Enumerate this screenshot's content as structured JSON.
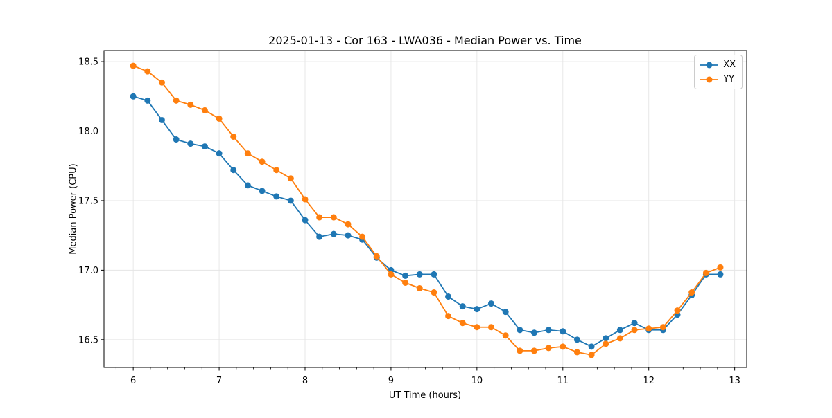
{
  "chart_data": {
    "type": "line",
    "title": "2025-01-13 - Cor 163 - LWA036 - Median Power vs. Time",
    "xlabel": "UT Time (hours)",
    "ylabel": "Median Power (CPU)",
    "x": [
      6.0,
      6.1667,
      6.3333,
      6.5,
      6.6667,
      6.8333,
      7.0,
      7.1667,
      7.3333,
      7.5,
      7.6667,
      7.8333,
      8.0,
      8.1667,
      8.3333,
      8.5,
      8.6667,
      8.8333,
      9.0,
      9.1667,
      9.3333,
      9.5,
      9.6667,
      9.8333,
      10.0,
      10.1667,
      10.3333,
      10.5,
      10.6667,
      10.8333,
      11.0,
      11.1667,
      11.3333,
      11.5,
      11.6667,
      11.8333,
      12.0,
      12.1667,
      12.3333,
      12.5,
      12.6667,
      12.8333
    ],
    "series": [
      {
        "name": "XX",
        "color": "#1f77b4",
        "values": [
          18.25,
          18.22,
          18.08,
          17.94,
          17.91,
          17.89,
          17.84,
          17.72,
          17.61,
          17.57,
          17.53,
          17.5,
          17.36,
          17.24,
          17.26,
          17.25,
          17.22,
          17.09,
          17.0,
          16.96,
          16.97,
          16.97,
          16.81,
          16.74,
          16.72,
          16.76,
          16.7,
          16.57,
          16.55,
          16.57,
          16.56,
          16.5,
          16.45,
          16.51,
          16.57,
          16.62,
          16.57,
          16.57,
          16.68,
          16.82,
          16.97,
          16.97
        ]
      },
      {
        "name": "YY",
        "color": "#ff7f0e",
        "values": [
          18.47,
          18.43,
          18.35,
          18.22,
          18.19,
          18.15,
          18.09,
          17.96,
          17.84,
          17.78,
          17.72,
          17.66,
          17.51,
          17.38,
          17.38,
          17.33,
          17.24,
          17.1,
          16.97,
          16.91,
          16.87,
          16.84,
          16.67,
          16.62,
          16.59,
          16.59,
          16.53,
          16.42,
          16.42,
          16.44,
          16.45,
          16.41,
          16.39,
          16.47,
          16.51,
          16.57,
          16.58,
          16.59,
          16.71,
          16.84,
          16.98,
          17.02
        ]
      }
    ],
    "xlim": [
      5.66,
      13.14
    ],
    "ylim": [
      16.3,
      18.58
    ],
    "xticks": [
      6,
      7,
      8,
      9,
      10,
      11,
      12,
      13
    ],
    "yticks": [
      16.5,
      17.0,
      17.5,
      18.0,
      18.5
    ],
    "minor_xtick_step": 0.2,
    "grid": true,
    "grid_color": "#e5e5e5",
    "legend_position": "upper right",
    "marker": "o",
    "background": "#ffffff"
  }
}
